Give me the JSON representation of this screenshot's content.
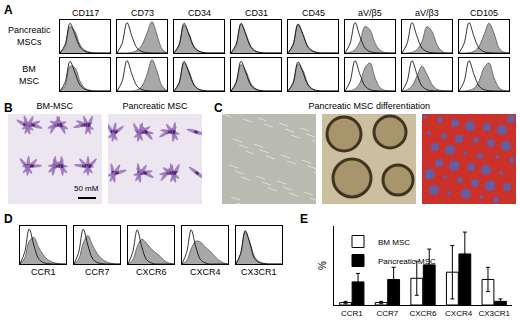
{
  "chart_data": [
    {
      "type": "histogram_overlay",
      "panel": "A",
      "columns": [
        "CD117",
        "CD73",
        "CD34",
        "CD31",
        "CD45",
        "aV/β5",
        "aV/β3",
        "CD105"
      ],
      "rows": [
        "Pancreatic MSCs",
        "BM MSC"
      ],
      "x": [
        0,
        1,
        2,
        3,
        4,
        5,
        6,
        7,
        8,
        9,
        10
      ],
      "xlim": [
        0,
        10
      ],
      "ylim": [
        0,
        100
      ],
      "tick_labels": false,
      "control": [
        [
          [
            0,
            25,
            90,
            55,
            18,
            5,
            1,
            0,
            0,
            0,
            0
          ],
          [
            0,
            28,
            92,
            50,
            15,
            4,
            1,
            0,
            0,
            0,
            0
          ],
          [
            0,
            25,
            90,
            55,
            18,
            5,
            1,
            0,
            0,
            0,
            0
          ],
          [
            0,
            26,
            90,
            54,
            17,
            5,
            1,
            0,
            0,
            0,
            0
          ],
          [
            0,
            25,
            88,
            56,
            18,
            5,
            1,
            0,
            0,
            0,
            0
          ],
          [
            0,
            28,
            92,
            50,
            15,
            4,
            1,
            0,
            0,
            0,
            0
          ],
          [
            0,
            28,
            92,
            50,
            15,
            4,
            1,
            0,
            0,
            0,
            0
          ],
          [
            0,
            28,
            92,
            50,
            15,
            4,
            1,
            0,
            0,
            0,
            0
          ]
        ],
        [
          [
            0,
            25,
            90,
            55,
            18,
            5,
            1,
            0,
            0,
            0,
            0
          ],
          [
            0,
            28,
            92,
            50,
            15,
            4,
            1,
            0,
            0,
            0,
            0
          ],
          [
            0,
            25,
            90,
            55,
            18,
            5,
            1,
            0,
            0,
            0,
            0
          ],
          [
            0,
            26,
            90,
            54,
            17,
            5,
            1,
            0,
            0,
            0,
            0
          ],
          [
            0,
            25,
            88,
            56,
            18,
            5,
            1,
            0,
            0,
            0,
            0
          ],
          [
            0,
            28,
            92,
            50,
            15,
            4,
            1,
            0,
            0,
            0,
            0
          ],
          [
            0,
            28,
            92,
            50,
            15,
            4,
            1,
            0,
            0,
            0,
            0
          ],
          [
            0,
            28,
            92,
            50,
            15,
            4,
            1,
            0,
            0,
            0,
            0
          ]
        ]
      ],
      "stained": [
        [
          [
            0,
            18,
            80,
            65,
            25,
            8,
            2,
            0,
            0,
            0,
            0
          ],
          [
            0,
            0,
            0,
            2,
            8,
            25,
            60,
            95,
            55,
            12,
            0
          ],
          [
            0,
            22,
            85,
            58,
            20,
            6,
            1,
            0,
            0,
            0,
            0
          ],
          [
            0,
            20,
            88,
            57,
            20,
            5,
            1,
            0,
            0,
            0,
            0
          ],
          [
            0,
            24,
            86,
            55,
            19,
            6,
            1,
            0,
            0,
            0,
            0
          ],
          [
            0,
            2,
            10,
            35,
            80,
            70,
            30,
            8,
            1,
            0,
            0
          ],
          [
            0,
            0,
            2,
            10,
            35,
            80,
            65,
            25,
            5,
            0,
            0
          ],
          [
            0,
            0,
            1,
            5,
            20,
            55,
            90,
            60,
            15,
            2,
            0
          ]
        ],
        [
          [
            0,
            15,
            75,
            70,
            30,
            8,
            2,
            0,
            0,
            0,
            0
          ],
          [
            0,
            0,
            0,
            0,
            3,
            15,
            50,
            95,
            60,
            15,
            1
          ],
          [
            0,
            20,
            85,
            60,
            20,
            5,
            1,
            0,
            0,
            0,
            0
          ],
          [
            0,
            22,
            80,
            60,
            22,
            6,
            1,
            0,
            0,
            0,
            0
          ],
          [
            0,
            20,
            82,
            62,
            21,
            5,
            1,
            0,
            0,
            0,
            0
          ],
          [
            0,
            1,
            6,
            25,
            70,
            85,
            40,
            10,
            2,
            0,
            0
          ],
          [
            0,
            3,
            15,
            45,
            75,
            50,
            20,
            5,
            1,
            0,
            0
          ],
          [
            0,
            0,
            2,
            8,
            30,
            70,
            85,
            40,
            10,
            1,
            0
          ]
        ]
      ]
    },
    {
      "type": "histogram_overlay",
      "panel": "D",
      "columns": [
        "CCR1",
        "CCR7",
        "CXCR6",
        "CXCR4",
        "CX3CR1"
      ],
      "x": [
        0,
        1,
        2,
        3,
        4,
        5,
        6,
        7,
        8,
        9,
        10
      ],
      "xlim": [
        0,
        10
      ],
      "ylim": [
        0,
        100
      ],
      "tick_labels": false,
      "control": [
        [
          [
            0,
            30,
            92,
            50,
            15,
            4,
            1,
            0,
            0,
            0,
            0
          ],
          [
            0,
            30,
            92,
            50,
            15,
            4,
            1,
            0,
            0,
            0,
            0
          ],
          [
            0,
            30,
            90,
            45,
            12,
            3,
            0,
            0,
            0,
            0,
            0
          ],
          [
            0,
            30,
            90,
            45,
            12,
            3,
            0,
            0,
            0,
            0,
            0
          ],
          [
            0,
            28,
            88,
            55,
            15,
            4,
            1,
            0,
            0,
            0,
            0
          ]
        ]
      ],
      "stained": [
        [
          [
            0,
            15,
            60,
            70,
            45,
            25,
            12,
            5,
            2,
            0,
            0
          ],
          [
            0,
            12,
            55,
            75,
            50,
            28,
            14,
            6,
            2,
            0,
            0
          ],
          [
            0,
            10,
            45,
            65,
            55,
            40,
            30,
            20,
            8,
            2,
            0
          ],
          [
            0,
            8,
            40,
            60,
            58,
            45,
            35,
            22,
            10,
            3,
            0
          ],
          [
            0,
            25,
            85,
            58,
            20,
            6,
            2,
            0,
            0,
            0,
            0
          ]
        ]
      ]
    },
    {
      "type": "bar",
      "panel": "E",
      "categories": [
        "CCR1",
        "CCR7",
        "CXCR6",
        "CXCR4",
        "CX3CR1"
      ],
      "series": [
        {
          "name": "BM MSC",
          "color": "#ffffff",
          "values": [
            2,
            2,
            22,
            27,
            21
          ],
          "errors": [
            1,
            1,
            14,
            22,
            10
          ]
        },
        {
          "name": "Pancreatic MSC",
          "color": "#000000",
          "values": [
            19,
            21,
            33,
            42,
            3
          ],
          "errors": [
            7,
            10,
            13,
            18,
            2
          ]
        }
      ],
      "ylabel": "%",
      "ylim": [
        0,
        65
      ],
      "tick_labels": "x",
      "grid": false,
      "legend": "top left"
    }
  ],
  "images": [
    {
      "panel": "B",
      "labels": [
        "BM-MSC",
        "Pancreatic MSC"
      ],
      "scale_bar": "50 mM"
    },
    {
      "panel": "C",
      "title": "Pancreatic MSC differentiation"
    }
  ]
}
